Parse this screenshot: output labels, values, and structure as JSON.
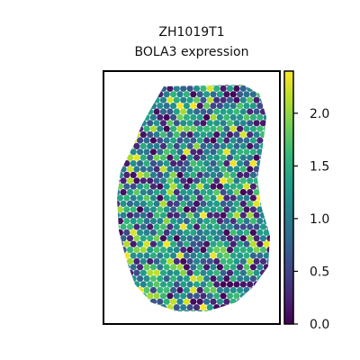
{
  "chart_data": {
    "type": "scatter",
    "title": [
      "ZH1019T1",
      "BOLA3 expression"
    ],
    "xlabel": "",
    "ylabel": "",
    "colorbar": {
      "colormap": "viridis",
      "range": [
        0.0,
        2.4
      ],
      "ticks": [
        0.0,
        0.5,
        1.0,
        1.5,
        2.0
      ],
      "tick_labels": [
        "0.0",
        "0.5",
        "1.0",
        "1.5",
        "2.0"
      ]
    },
    "points": {
      "description_of_value": "expression level per spot",
      "marker": "hexagonal spot",
      "grid": "hexagonal"
    },
    "axes": {
      "ticks_visible": false,
      "grid": false
    },
    "colors": {
      "viridis_stops": [
        "#440154",
        "#482878",
        "#3e4989",
        "#31688e",
        "#26828e",
        "#1f9e89",
        "#35b779",
        "#6ece58",
        "#b5de2b",
        "#fde725"
      ]
    }
  }
}
